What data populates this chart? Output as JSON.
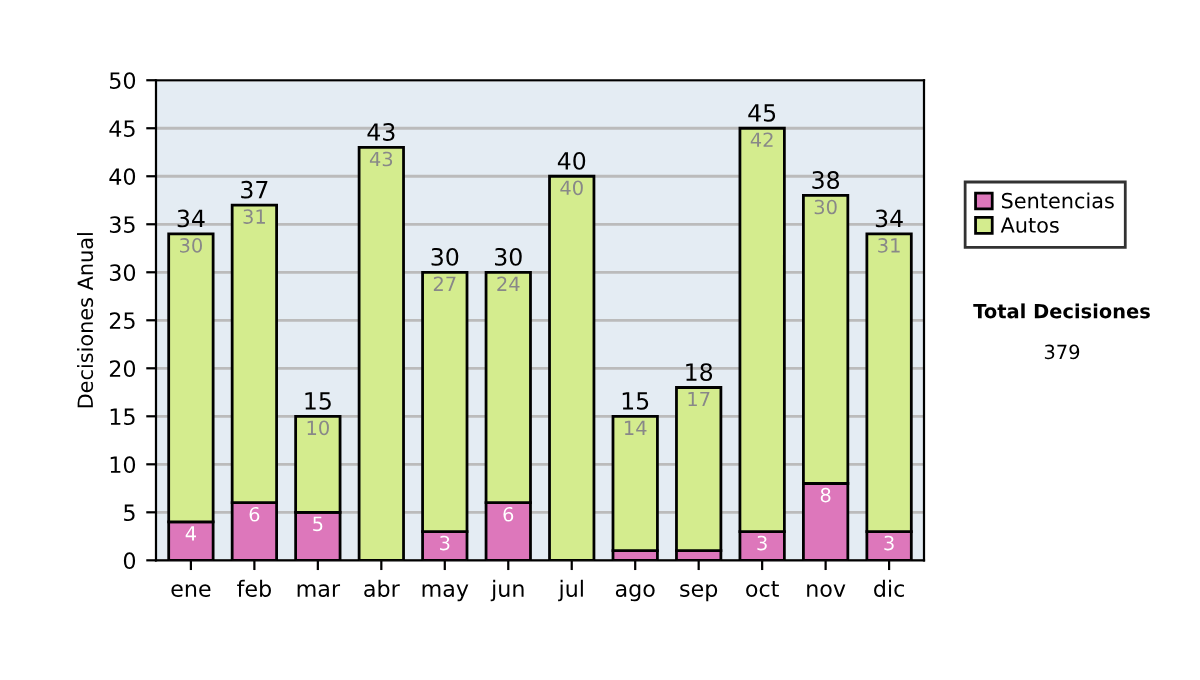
{
  "chart_data": {
    "type": "bar",
    "stacked": true,
    "ylabel": "Decisiones Anual",
    "categories": [
      "ene",
      "feb",
      "mar",
      "abr",
      "may",
      "jun",
      "jul",
      "ago",
      "sep",
      "oct",
      "nov",
      "dic"
    ],
    "series": [
      {
        "name": "Sentencias",
        "color": "#dd77bb",
        "values": [
          4,
          6,
          5,
          0,
          3,
          6,
          0,
          1,
          1,
          3,
          8,
          3
        ],
        "value_labels": [
          "4",
          "6",
          "5",
          null,
          "3",
          "6",
          null,
          null,
          null,
          "3",
          "8",
          "3"
        ]
      },
      {
        "name": "Autos",
        "color": "#d4ec8e",
        "values": [
          30,
          31,
          10,
          43,
          27,
          24,
          40,
          14,
          17,
          42,
          30,
          31
        ],
        "value_labels": [
          "30",
          "31",
          "10",
          "43",
          "27",
          "24",
          "40",
          "14",
          "17",
          "42",
          "30",
          "31"
        ]
      }
    ],
    "totals": [
      "34",
      "37",
      "15",
      "43",
      "30",
      "30",
      "40",
      "15",
      "18",
      "45",
      "38",
      "34"
    ],
    "ylim": [
      0,
      50
    ],
    "yticks": [
      0,
      5,
      10,
      15,
      20,
      25,
      30,
      35,
      40,
      45,
      50
    ],
    "grid": "y",
    "legend": "right",
    "annotations": [
      "Total Decisiones",
      "379"
    ]
  }
}
